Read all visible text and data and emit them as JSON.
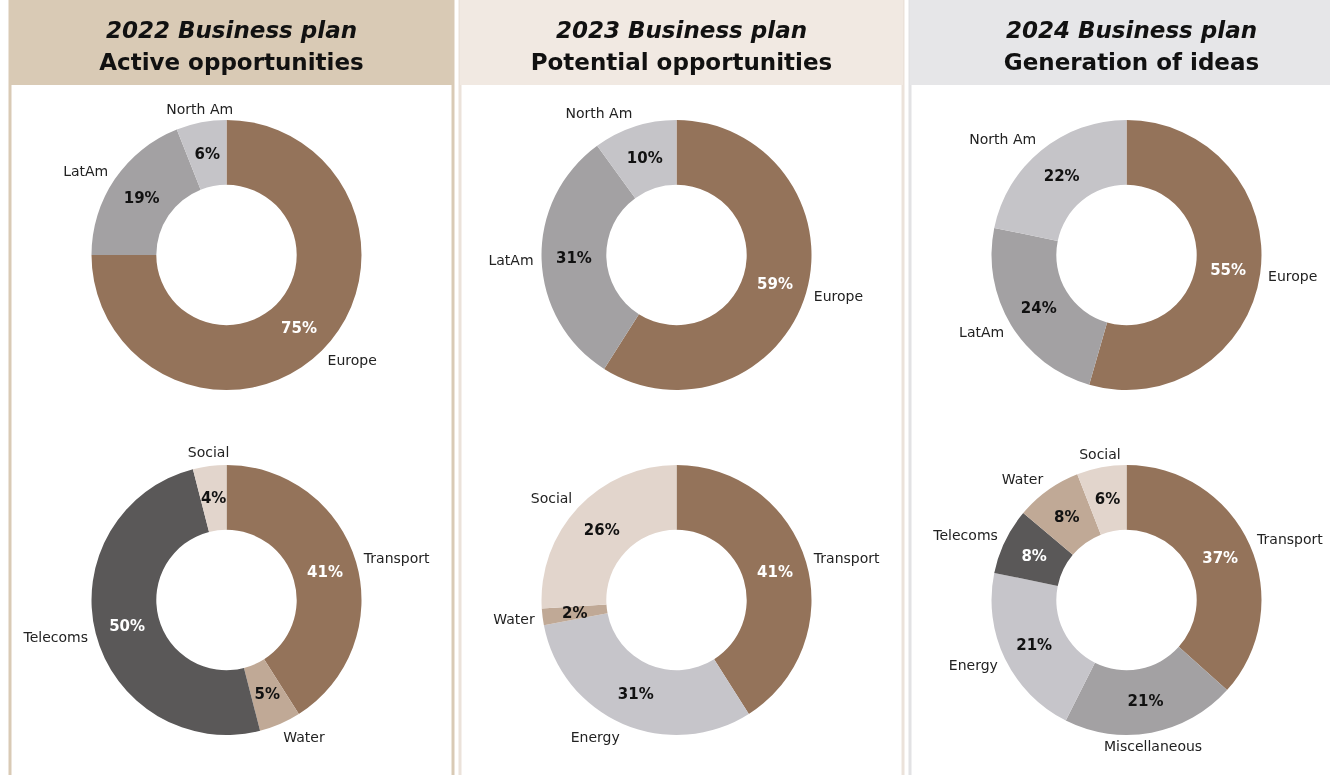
{
  "chart_data": [
    {
      "type": "donut",
      "title": "2022 Business plan",
      "subtitle": "Active opportunities",
      "categories": [
        "Europe",
        "LatAm",
        "North Am"
      ],
      "values": [
        75,
        19,
        6
      ],
      "colors": [
        "#94735a",
        "#a3a1a3",
        "#c5c4c8"
      ],
      "value_labels": [
        "75%",
        "19%",
        "6%"
      ]
    },
    {
      "type": "donut",
      "categories": [
        "Transport",
        "Water",
        "Telecoms",
        "Social"
      ],
      "values": [
        41,
        5,
        50,
        4
      ],
      "colors": [
        "#94735a",
        "#c0a996",
        "#5a5858",
        "#e2d5cc"
      ],
      "value_labels": [
        "41%",
        "5%",
        "50%",
        "4%"
      ]
    },
    {
      "type": "donut",
      "title": "2023 Business plan",
      "subtitle": "Potential opportunities",
      "categories": [
        "Europe",
        "LatAm",
        "North Am"
      ],
      "values": [
        59,
        31,
        10
      ],
      "colors": [
        "#94735a",
        "#a3a1a3",
        "#c5c4c8"
      ],
      "value_labels": [
        "59%",
        "31%",
        "10%"
      ]
    },
    {
      "type": "donut",
      "categories": [
        "Transport",
        "Energy",
        "Water",
        "Social"
      ],
      "values": [
        41,
        31,
        2,
        26
      ],
      "colors": [
        "#94735a",
        "#c6c5ca",
        "#c0a996",
        "#e2d5cc"
      ],
      "value_labels": [
        "41%",
        "31%",
        "2%",
        "26%"
      ]
    },
    {
      "type": "donut",
      "title": "2024 Business plan",
      "subtitle": "Generation of ideas",
      "categories": [
        "Europe",
        "LatAm",
        "North Am"
      ],
      "values": [
        55,
        24,
        22
      ],
      "colors": [
        "#94735a",
        "#a3a1a3",
        "#c5c4c8"
      ],
      "value_labels": [
        "55%",
        "24%",
        "22%"
      ]
    },
    {
      "type": "donut",
      "categories": [
        "Transport",
        "Miscellaneous",
        "Energy",
        "Telecoms",
        "Water",
        "Social"
      ],
      "values": [
        37,
        21,
        21,
        8,
        8,
        6
      ],
      "colors": [
        "#94735a",
        "#a3a1a3",
        "#c6c5ca",
        "#5a5858",
        "#c0a996",
        "#e2d5cc"
      ],
      "value_labels": [
        "37%",
        "21%",
        "21%",
        "8%",
        "8%",
        "6%"
      ]
    }
  ]
}
